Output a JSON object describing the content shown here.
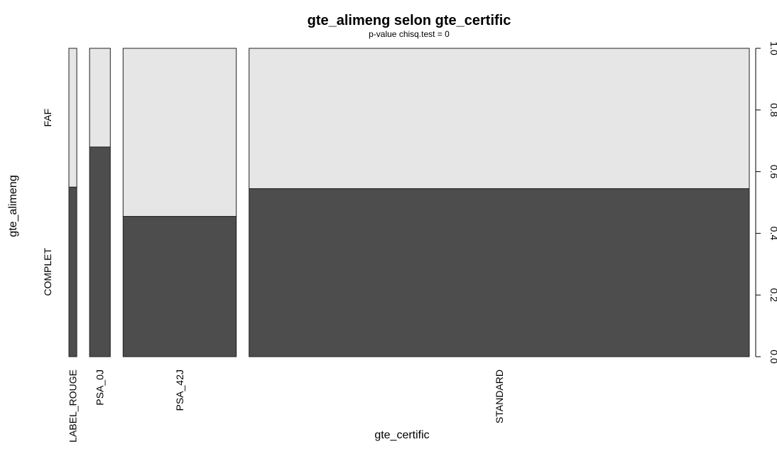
{
  "chart_data": {
    "type": "mosaic",
    "title": "gte_alimeng selon gte_certific",
    "subtitle": "p-value chisq.test =  0",
    "xlabel": "gte_certific",
    "ylabel": "gte_alimeng",
    "categories": [
      "LABEL_ROUGE",
      "PSA_0J",
      "PSA_42J",
      "STANDARD"
    ],
    "category_proportions": [
      0.0123,
      0.0323,
      0.1763,
      0.7791
    ],
    "series": [
      {
        "name": "COMPLET",
        "values": [
          0.55,
          0.68,
          0.455,
          0.545
        ],
        "color": "#4d4d4d"
      },
      {
        "name": "FAF",
        "values": [
          0.45,
          0.32,
          0.545,
          0.455
        ],
        "color": "#e6e6e6"
      }
    ],
    "y_ticks": [
      "0.0",
      "0.2",
      "0.4",
      "0.6",
      "0.8",
      "1.0"
    ],
    "ylim": [
      0,
      1
    ],
    "y_axis_side": "right",
    "grid": false
  }
}
